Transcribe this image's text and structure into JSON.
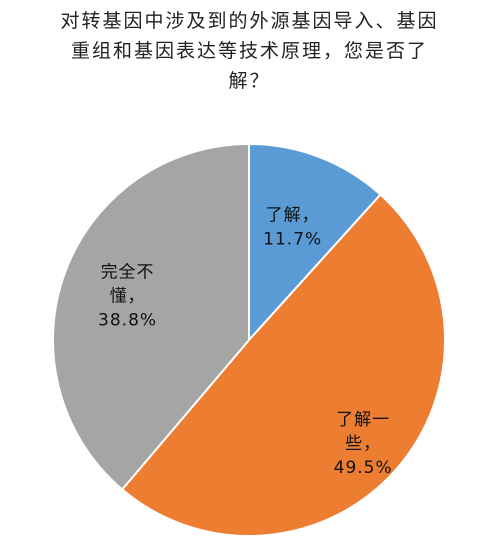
{
  "chart_data": {
    "type": "pie",
    "title_lines": [
      "对转基因中涉及到的外源基因导入、基因",
      "重组和基因表达等技术原理，您是否了",
      "解？"
    ],
    "slices": [
      {
        "label_lines": [
          "了解，",
          "11.7%"
        ],
        "value": 11.7,
        "color": "#5b9bd5"
      },
      {
        "label_lines": [
          "了解一",
          "些，",
          "49.5%"
        ],
        "value": 49.5,
        "color": "#ed7d31"
      },
      {
        "label_lines": [
          "完全不",
          "懂，",
          "38.8%"
        ],
        "value": 38.8,
        "color": "#a5a5a5"
      }
    ],
    "start_angle_deg": 0,
    "direction": "clockwise",
    "legend": "none"
  }
}
